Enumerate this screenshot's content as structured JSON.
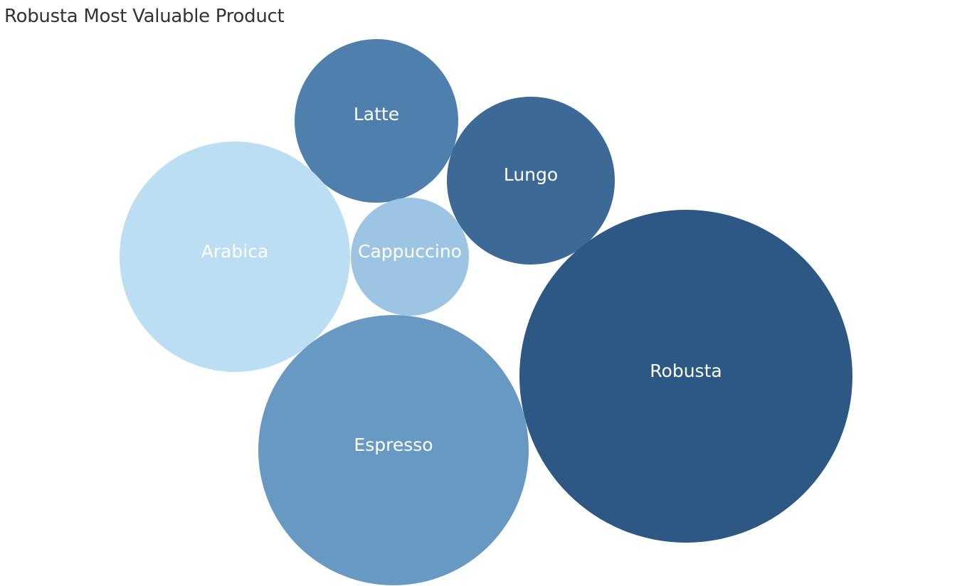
{
  "chart_data": {
    "type": "bubble",
    "title": "Robusta Most Valuable Product",
    "items": [
      {
        "label": "Latte",
        "color": "#4f7fad"
      },
      {
        "label": "Lungo",
        "color": "#3d6996"
      },
      {
        "label": "Arabica",
        "color": "#bbdef2"
      },
      {
        "label": "Cappuccino",
        "color": "#9cc5e4"
      },
      {
        "label": "Robusta",
        "color": "#2d5883"
      },
      {
        "label": "Espresso",
        "color": "#6899c2"
      }
    ]
  }
}
